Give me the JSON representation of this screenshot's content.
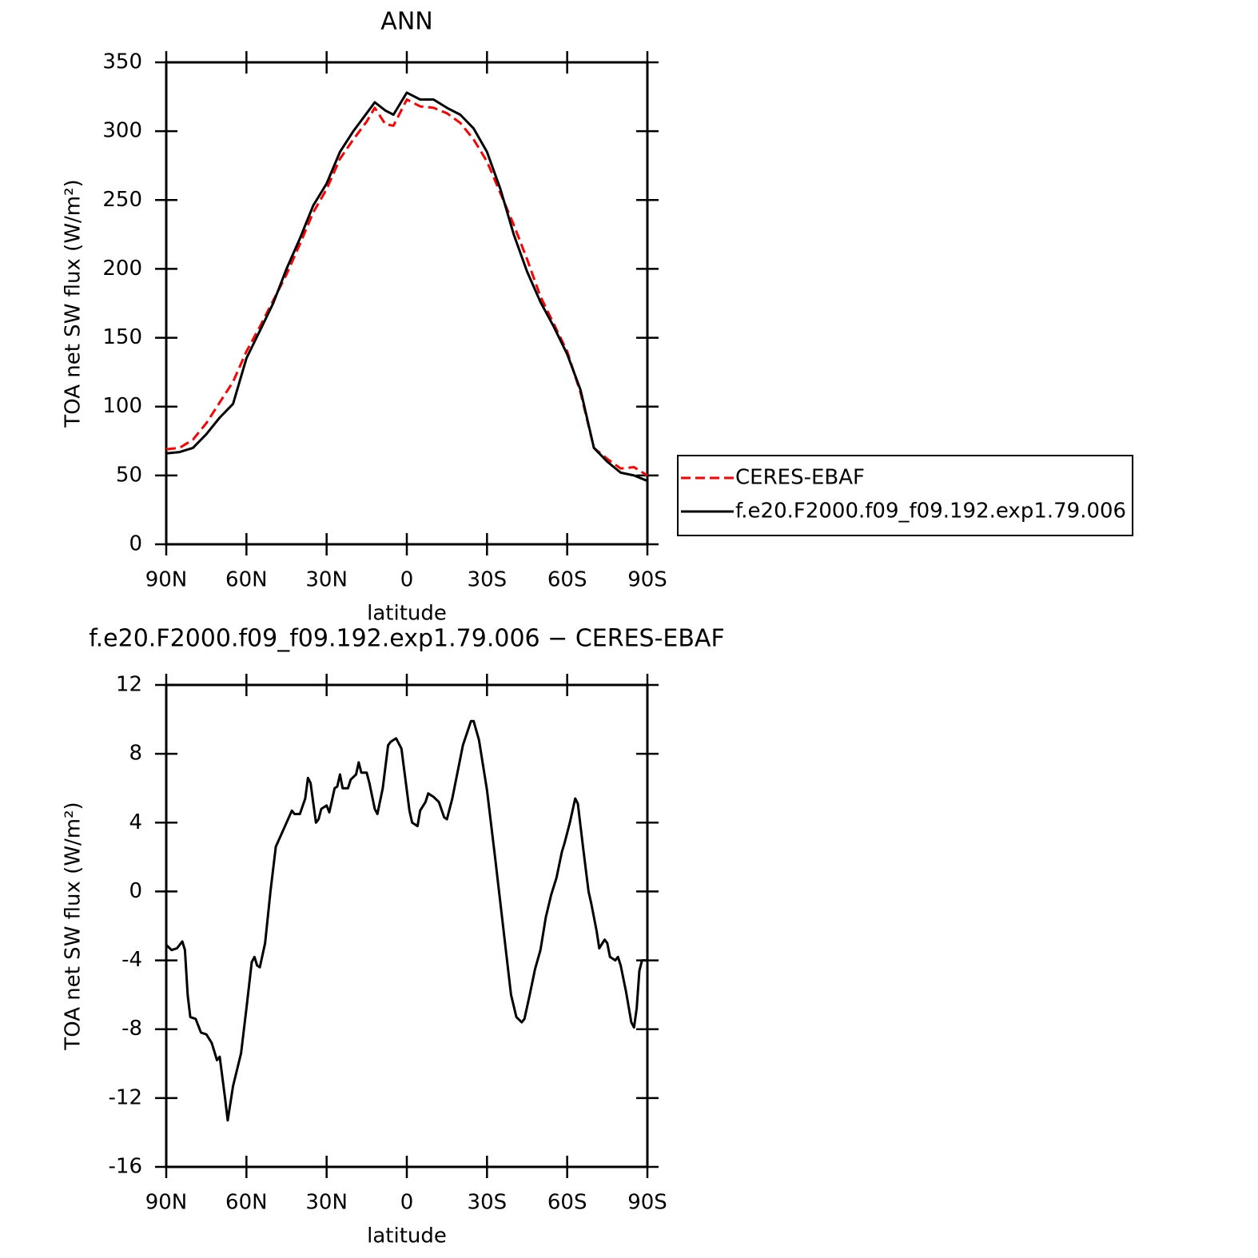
{
  "chart_data": [
    {
      "type": "line",
      "title": "ANN",
      "xlabel": "latitude",
      "ylabel": "TOA net SW flux (W/m²)",
      "x": [
        90,
        85,
        80,
        75,
        70,
        65,
        60,
        55,
        50,
        45,
        40,
        35,
        30,
        25,
        20,
        15,
        12,
        8,
        5,
        0,
        -5,
        -10,
        -15,
        -20,
        -25,
        -30,
        -35,
        -40,
        -45,
        -50,
        -55,
        -60,
        -65,
        -70,
        -75,
        -80,
        -85,
        -90
      ],
      "series": [
        {
          "name": "CERES-EBAF",
          "color": "#ff0000",
          "style": "dashed",
          "values": [
            69,
            70,
            76,
            88,
            103,
            118,
            140,
            158,
            177,
            196,
            218,
            241,
            258,
            280,
            294,
            307,
            317,
            305,
            304,
            323,
            318,
            317,
            313,
            306,
            294,
            278,
            255,
            232,
            207,
            180,
            160,
            140,
            110,
            70,
            62,
            55,
            56,
            50
          ]
        },
        {
          "name": "f.e20.F2000.f09_f09.192.exp1.79.006",
          "color": "#000000",
          "style": "solid",
          "values": [
            66,
            67,
            70,
            80,
            92,
            102,
            135,
            155,
            175,
            200,
            222,
            246,
            262,
            285,
            300,
            313,
            321,
            315,
            312,
            328,
            323,
            323,
            317,
            312,
            302,
            285,
            258,
            225,
            198,
            176,
            158,
            138,
            112,
            70,
            60,
            52,
            50,
            46
          ]
        }
      ],
      "legend": "right",
      "xlim": [
        90,
        -90
      ],
      "xticks": [
        {
          "value": 90,
          "label": "90N"
        },
        {
          "value": 60,
          "label": "60N"
        },
        {
          "value": 30,
          "label": "30N"
        },
        0,
        {
          "value": -30,
          "label": "30S"
        },
        {
          "value": -60,
          "label": "60S"
        },
        {
          "value": -90,
          "label": "90S"
        }
      ],
      "ylim": [
        0,
        350
      ],
      "yticks": [
        0,
        50,
        100,
        150,
        200,
        250,
        300,
        350
      ]
    },
    {
      "type": "line",
      "title": "f.e20.F2000.f09_f09.192.exp1.79.006 − CERES-EBAF",
      "xlabel": "latitude",
      "ylabel": "TOA net SW flux (W/m²)",
      "x": [
        90,
        88,
        86,
        84,
        83,
        82,
        81,
        79,
        77,
        75,
        73,
        71,
        70,
        68,
        67,
        65,
        62,
        60,
        58,
        57,
        56,
        55,
        53,
        51,
        49,
        47,
        45,
        43,
        42,
        40,
        38,
        37,
        36,
        34,
        33,
        32,
        30,
        29,
        27,
        26,
        25,
        24,
        22,
        21,
        19,
        18,
        17,
        15,
        14,
        12,
        11,
        9,
        7,
        6,
        4,
        2,
        -1,
        -2,
        -4,
        -5,
        -7,
        -8,
        -10,
        -12,
        -14,
        -15,
        -17,
        -21,
        -24,
        -25,
        -27,
        -30,
        -33,
        -36,
        -39,
        -41,
        -43,
        -44,
        -46,
        -48,
        -50,
        -52,
        -54,
        -56,
        -58,
        -59,
        -61,
        -63,
        -64,
        -66,
        -68,
        -69,
        -71,
        -72,
        -74,
        -75,
        -76,
        -78,
        -79,
        -80,
        -82,
        -84,
        -85,
        -86,
        -87,
        -88,
        -90
      ],
      "values": [
        -3.1,
        -3.4,
        -3.3,
        -2.9,
        -3.4,
        -6,
        -7.3,
        -7.4,
        -8.2,
        -8.3,
        -8.8,
        -9.8,
        -9.6,
        -12,
        -13.3,
        -11.3,
        -9.4,
        -6.8,
        -4.1,
        -3.8,
        -4.3,
        -4.4,
        -3,
        0,
        2.6,
        3.3,
        4,
        4.7,
        4.5,
        4.5,
        5.4,
        6.6,
        6.3,
        4,
        4.2,
        4.8,
        5,
        4.6,
        6,
        6.1,
        6.8,
        6,
        6,
        6.5,
        6.8,
        7.5,
        6.9,
        6.9,
        6.3,
        4.8,
        4.5,
        6,
        8.5,
        8.7,
        8.9,
        8.3,
        4.7,
        4,
        3.8,
        4.7,
        5.2,
        5.7,
        5.5,
        5.2,
        4.3,
        4.2,
        5.4,
        8.5,
        9.9,
        9.9,
        8.8,
        5.9,
        2,
        -2,
        -6,
        -7.3,
        -7.6,
        -7.4,
        -6,
        -4.5,
        -3.4,
        -1.5,
        -0.2,
        0.8,
        2.3,
        2.8,
        4,
        5.4,
        5.1,
        2.5,
        0,
        -0.7,
        -2.3,
        -3.3,
        -2.8,
        -3,
        -3.8,
        -4,
        -3.8,
        -4.3,
        -5.8,
        -7.6,
        -7.9,
        -6.8,
        -4.6,
        -4,
        -4
      ],
      "color": "#000000",
      "xlim": [
        90,
        -90
      ],
      "xticks": [
        {
          "value": 90,
          "label": "90N"
        },
        {
          "value": 60,
          "label": "60N"
        },
        {
          "value": 30,
          "label": "30N"
        },
        0,
        {
          "value": -30,
          "label": "30S"
        },
        {
          "value": -60,
          "label": "60S"
        },
        {
          "value": -90,
          "label": "90S"
        }
      ],
      "ylim": [
        -16,
        12
      ],
      "yticks": [
        -16,
        -12,
        -8,
        -4,
        0,
        4,
        8,
        12
      ]
    }
  ]
}
